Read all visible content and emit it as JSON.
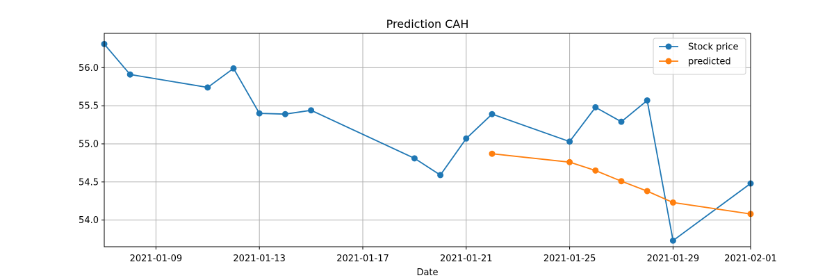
{
  "chart_data": {
    "type": "line",
    "title": "Prediction CAH",
    "xlabel": "Date",
    "ylabel": "",
    "xlim": [
      "2021-01-07",
      "2021-02-01"
    ],
    "ylim": [
      53.65,
      56.45
    ],
    "grid": true,
    "legend_position": "top-right",
    "x_ticks": [
      "2021-01-09",
      "2021-01-13",
      "2021-01-17",
      "2021-01-21",
      "2021-01-25",
      "2021-01-29",
      "2021-02-01"
    ],
    "y_ticks": [
      54.0,
      54.5,
      55.0,
      55.5,
      56.0
    ],
    "series": [
      {
        "name": "Stock price",
        "color": "#1f77b4",
        "points": [
          {
            "x": "2021-01-07",
            "y": 56.31
          },
          {
            "x": "2021-01-08",
            "y": 55.91
          },
          {
            "x": "2021-01-11",
            "y": 55.74
          },
          {
            "x": "2021-01-12",
            "y": 55.99
          },
          {
            "x": "2021-01-13",
            "y": 55.4
          },
          {
            "x": "2021-01-14",
            "y": 55.39
          },
          {
            "x": "2021-01-15",
            "y": 55.44
          },
          {
            "x": "2021-01-19",
            "y": 54.81
          },
          {
            "x": "2021-01-20",
            "y": 54.59
          },
          {
            "x": "2021-01-21",
            "y": 55.07
          },
          {
            "x": "2021-01-22",
            "y": 55.39
          },
          {
            "x": "2021-01-25",
            "y": 55.03
          },
          {
            "x": "2021-01-26",
            "y": 55.48
          },
          {
            "x": "2021-01-27",
            "y": 55.29
          },
          {
            "x": "2021-01-28",
            "y": 55.57
          },
          {
            "x": "2021-01-29",
            "y": 53.73
          },
          {
            "x": "2021-02-01",
            "y": 54.48
          }
        ]
      },
      {
        "name": "predicted",
        "color": "#ff7f0e",
        "points": [
          {
            "x": "2021-01-22",
            "y": 54.87
          },
          {
            "x": "2021-01-25",
            "y": 54.76
          },
          {
            "x": "2021-01-26",
            "y": 54.65
          },
          {
            "x": "2021-01-27",
            "y": 54.51
          },
          {
            "x": "2021-01-28",
            "y": 54.38
          },
          {
            "x": "2021-01-29",
            "y": 54.23
          },
          {
            "x": "2021-02-01",
            "y": 54.08
          }
        ]
      }
    ]
  }
}
